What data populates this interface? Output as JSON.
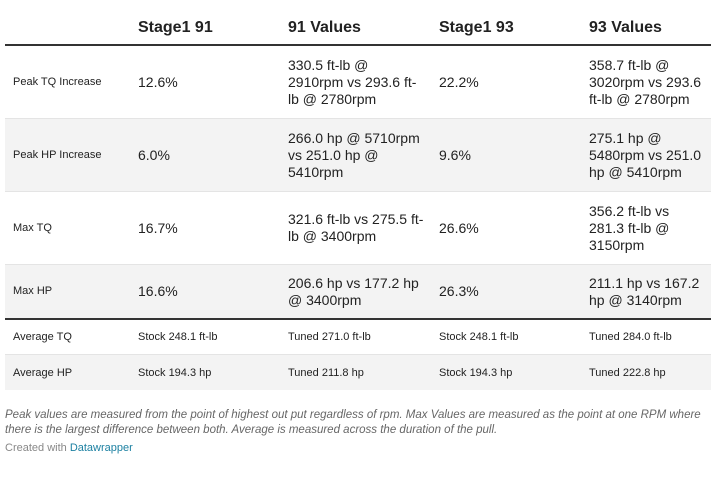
{
  "table": {
    "headers": [
      "",
      "Stage1 91",
      "91 Values",
      "Stage1 93",
      "93 Values"
    ],
    "rows": [
      [
        "Peak TQ Increase",
        "12.6%",
        "330.5 ft-lb @ 2910rpm vs 293.6 ft-lb @ 2780rpm",
        "22.2%",
        "358.7 ft-lb @ 3020rpm vs 293.6 ft-lb @ 2780rpm"
      ],
      [
        "Peak HP Increase",
        "6.0%",
        "266.0 hp @ 5710rpm vs 251.0 hp @ 5410rpm",
        "9.6%",
        "275.1 hp @ 5480rpm vs 251.0 hp @ 5410rpm"
      ],
      [
        "Max TQ",
        "16.7%",
        "321.6 ft-lb vs 275.5 ft-lb @ 3400rpm",
        "26.6%",
        "356.2 ft-lb vs 281.3 ft-lb @ 3150rpm"
      ],
      [
        "Max HP",
        "16.6%",
        "206.6 hp vs 177.2 hp @ 3400rpm",
        "26.3%",
        "211.1 hp vs 167.2 hp @ 3140rpm"
      ],
      [
        "Average TQ",
        "Stock 248.1 ft-lb",
        "Tuned 271.0 ft-lb",
        "Stock 248.1 ft-lb",
        "Tuned 284.0 ft-lb"
      ],
      [
        "Average HP",
        "Stock 194.3 hp",
        "Tuned 211.8 hp",
        "Stock 194.3 hp",
        "Tuned 222.8 hp"
      ]
    ]
  },
  "notes": "Peak values are measured from the point of highest out put regardless of rpm. Max Values are measured as the point at one RPM where there is the largest difference between both. Average is measured across the duration of the pull.",
  "credit": {
    "prefix": "Created with ",
    "link": "Datawrapper"
  },
  "colors": {
    "shade": "#f3f3f3",
    "link": "#1d81a2",
    "rule": "#333333"
  }
}
